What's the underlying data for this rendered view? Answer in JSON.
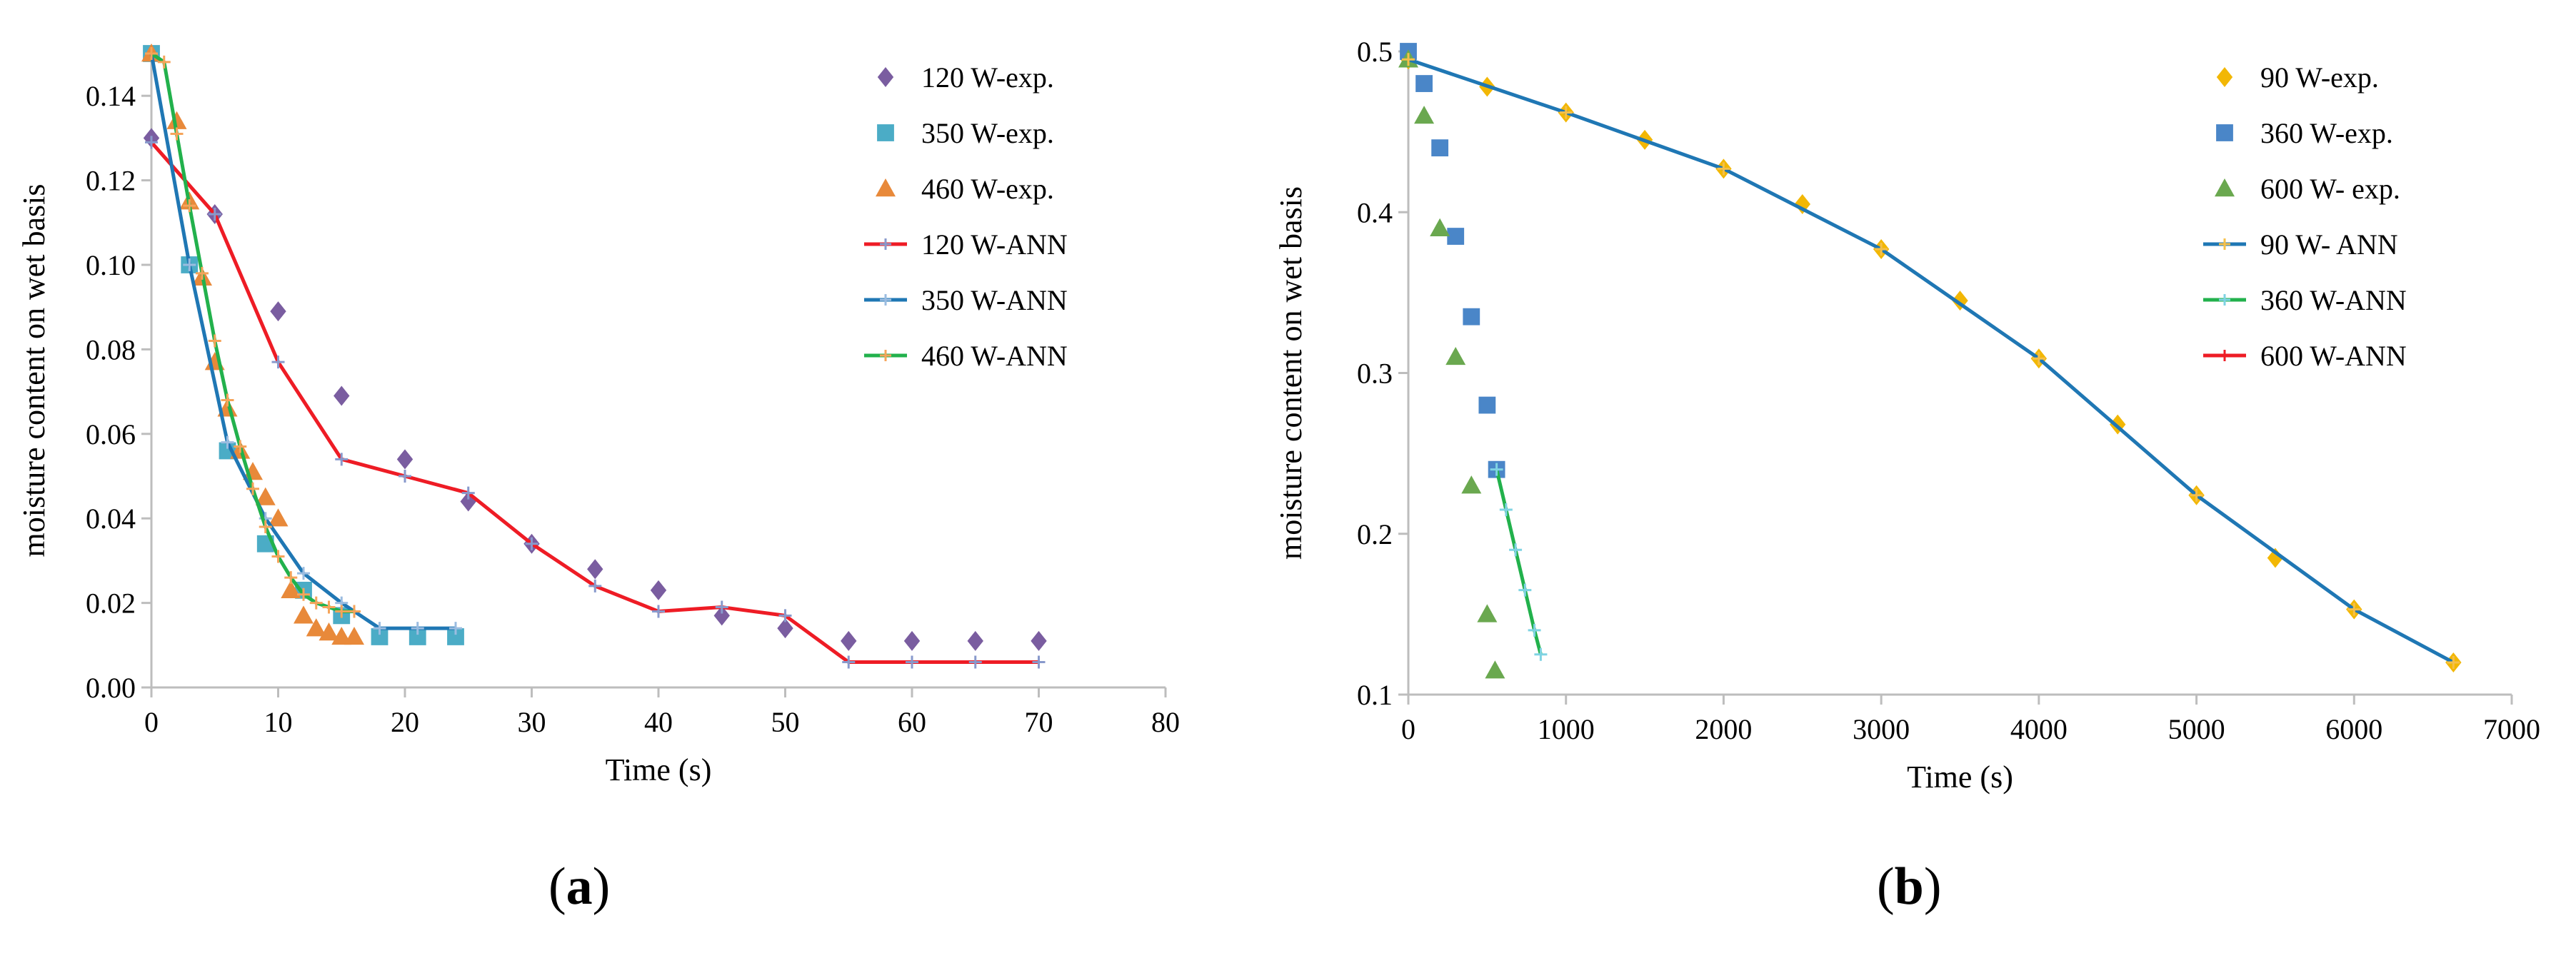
{
  "panel_labels": {
    "a": "a",
    "b": "b"
  },
  "chart_data": [
    {
      "type": "scatter",
      "panel": "a",
      "xlabel": "Time (s)",
      "ylabel": "moisture content on wet basis",
      "xlim": [
        0,
        80
      ],
      "ylim": [
        0,
        0.15
      ],
      "xticks": [
        0,
        10,
        20,
        30,
        40,
        50,
        60,
        70,
        80
      ],
      "yticks": [
        0.0,
        0.02,
        0.04,
        0.06,
        0.08,
        0.1,
        0.12,
        0.14
      ],
      "ytick_decimals": 2,
      "grid": false,
      "legend_position": "top-right",
      "series": [
        {
          "name": "120 W-exp.",
          "kind": "points",
          "marker": "diamond",
          "color": "#7A5DA0",
          "x": [
            0,
            5,
            10,
            15,
            20,
            25,
            30,
            35,
            40,
            45,
            50,
            55,
            60,
            65,
            70
          ],
          "y": [
            0.13,
            0.112,
            0.089,
            0.069,
            0.054,
            0.044,
            0.034,
            0.028,
            0.023,
            0.017,
            0.014,
            0.011,
            0.011,
            0.011,
            0.011
          ]
        },
        {
          "name": "350 W-exp.",
          "kind": "points",
          "marker": "square",
          "color": "#4BACC6",
          "x": [
            0,
            3,
            6,
            9,
            12,
            15,
            18,
            21,
            24
          ],
          "y": [
            0.15,
            0.1,
            0.056,
            0.034,
            0.023,
            0.017,
            0.012,
            0.012,
            0.012
          ]
        },
        {
          "name": "460 W-exp.",
          "kind": "points",
          "marker": "triangle",
          "color": "#E8893A",
          "x": [
            0,
            2,
            3,
            4,
            5,
            6,
            7,
            8,
            9,
            10,
            11,
            12,
            13,
            14,
            15,
            16
          ],
          "y": [
            0.15,
            0.134,
            0.115,
            0.097,
            0.077,
            0.066,
            0.056,
            0.051,
            0.045,
            0.04,
            0.023,
            0.017,
            0.014,
            0.013,
            0.012,
            0.012
          ]
        },
        {
          "name": "120 W-ANN",
          "kind": "line",
          "color": "#EE1C25",
          "tick_color": "#8899CC",
          "x": [
            0,
            5,
            10,
            15,
            20,
            25,
            30,
            35,
            40,
            45,
            50,
            55,
            60,
            65,
            70
          ],
          "y": [
            0.129,
            0.112,
            0.077,
            0.054,
            0.05,
            0.046,
            0.034,
            0.024,
            0.018,
            0.019,
            0.017,
            0.006,
            0.006,
            0.006,
            0.006
          ]
        },
        {
          "name": "350 W-ANN",
          "kind": "line",
          "color": "#1F77B4",
          "tick_color": "#9BBCE0",
          "x": [
            0,
            3,
            6,
            9,
            12,
            15,
            18,
            21,
            24
          ],
          "y": [
            0.15,
            0.1,
            0.058,
            0.04,
            0.027,
            0.02,
            0.014,
            0.014,
            0.014
          ]
        },
        {
          "name": "460 W-ANN",
          "kind": "line",
          "color": "#22B14C",
          "tick_color": "#F5A45A",
          "x": [
            0,
            1,
            2,
            3,
            4,
            5,
            6,
            7,
            8,
            9,
            10,
            11,
            12,
            13,
            14,
            15,
            16
          ],
          "y": [
            0.15,
            0.148,
            0.131,
            0.114,
            0.098,
            0.082,
            0.068,
            0.057,
            0.047,
            0.038,
            0.031,
            0.026,
            0.022,
            0.02,
            0.019,
            0.018,
            0.018
          ]
        }
      ]
    },
    {
      "type": "scatter",
      "panel": "b",
      "xlabel": "Time (s)",
      "ylabel": "moisture content on wet basis",
      "xlim": [
        0,
        7000
      ],
      "ylim": [
        0.1,
        0.5
      ],
      "xticks": [
        0,
        1000,
        2000,
        3000,
        4000,
        5000,
        6000,
        7000
      ],
      "yticks": [
        0.1,
        0.2,
        0.3,
        0.4,
        0.5
      ],
      "ytick_decimals": 1,
      "grid": false,
      "legend_position": "top-right",
      "series": [
        {
          "name": "90 W-exp.",
          "kind": "points",
          "marker": "diamond",
          "color": "#F2B705",
          "x": [
            0,
            500,
            1000,
            1500,
            2000,
            2500,
            3000,
            3500,
            4000,
            4500,
            5000,
            5500,
            6000,
            6630
          ],
          "y": [
            0.495,
            0.478,
            0.462,
            0.445,
            0.427,
            0.405,
            0.377,
            0.345,
            0.309,
            0.268,
            0.224,
            0.185,
            0.153,
            0.12
          ]
        },
        {
          "name": "360 W-exp.",
          "kind": "points",
          "marker": "square",
          "color": "#4A86C8",
          "x": [
            0,
            100,
            200,
            300,
            400,
            500,
            560
          ],
          "y": [
            0.5,
            0.48,
            0.44,
            0.385,
            0.335,
            0.28,
            0.24
          ]
        },
        {
          "name": "600 W- exp.",
          "kind": "points",
          "marker": "triangle",
          "color": "#6AA84F",
          "x": [
            0,
            100,
            200,
            300,
            400,
            500,
            550
          ],
          "y": [
            0.495,
            0.46,
            0.39,
            0.31,
            0.23,
            0.15,
            0.115
          ]
        },
        {
          "name": "90 W- ANN",
          "kind": "line",
          "color": "#1F77B4",
          "tick_color": "#F5C04A",
          "x": [
            0,
            1000,
            2000,
            3000,
            4000,
            5000,
            6000,
            6630
          ],
          "y": [
            0.495,
            0.462,
            0.427,
            0.377,
            0.309,
            0.224,
            0.153,
            0.12
          ]
        },
        {
          "name": "360 W-ANN",
          "kind": "line",
          "color": "#22B14C",
          "tick_color": "#7FD3E3",
          "x": [
            560,
            620,
            680,
            740,
            800,
            840
          ],
          "y": [
            0.24,
            0.215,
            0.19,
            0.165,
            0.14,
            0.125
          ]
        },
        {
          "name": "600 W-ANN",
          "kind": "line",
          "color": "#EE1C25",
          "tick_color": "#EE1C25",
          "x": [],
          "y": []
        }
      ]
    }
  ]
}
